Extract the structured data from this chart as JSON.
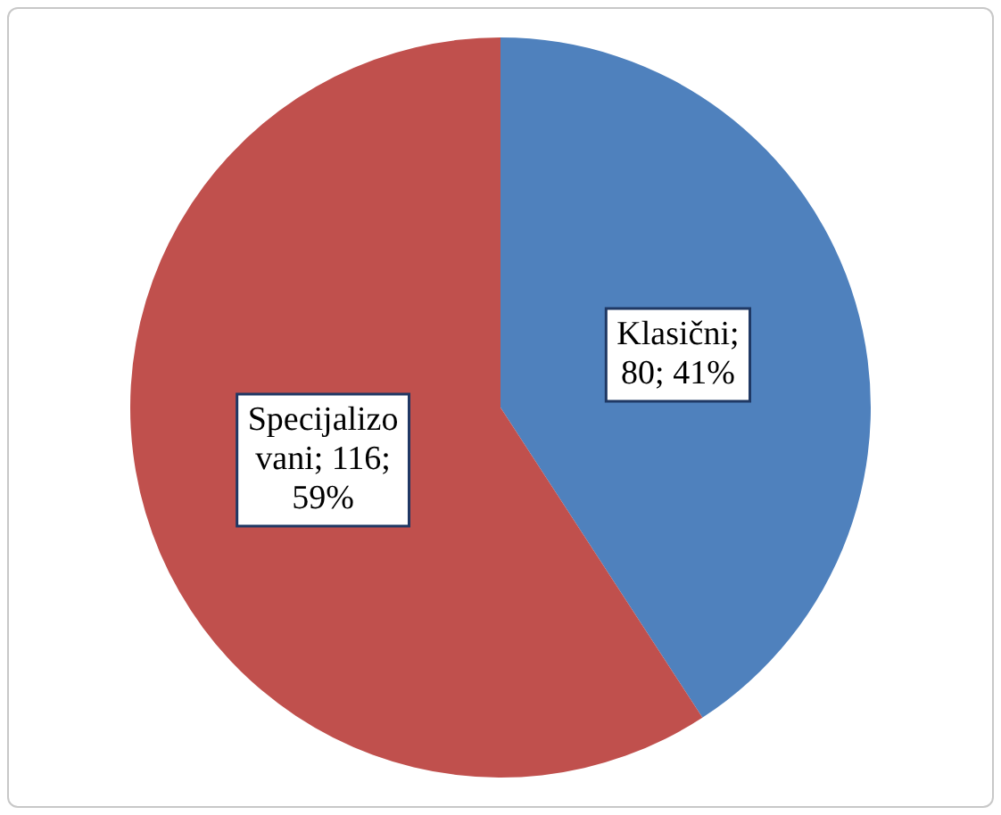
{
  "chart_data": {
    "type": "pie",
    "categories": [
      "Klasični",
      "Specijalizovani"
    ],
    "values": [
      80,
      116
    ],
    "colors": [
      "#4f81bd",
      "#c0504d"
    ],
    "value_labels": [
      "; 80; 41%",
      "; 116; 59%"
    ],
    "legend": false
  }
}
